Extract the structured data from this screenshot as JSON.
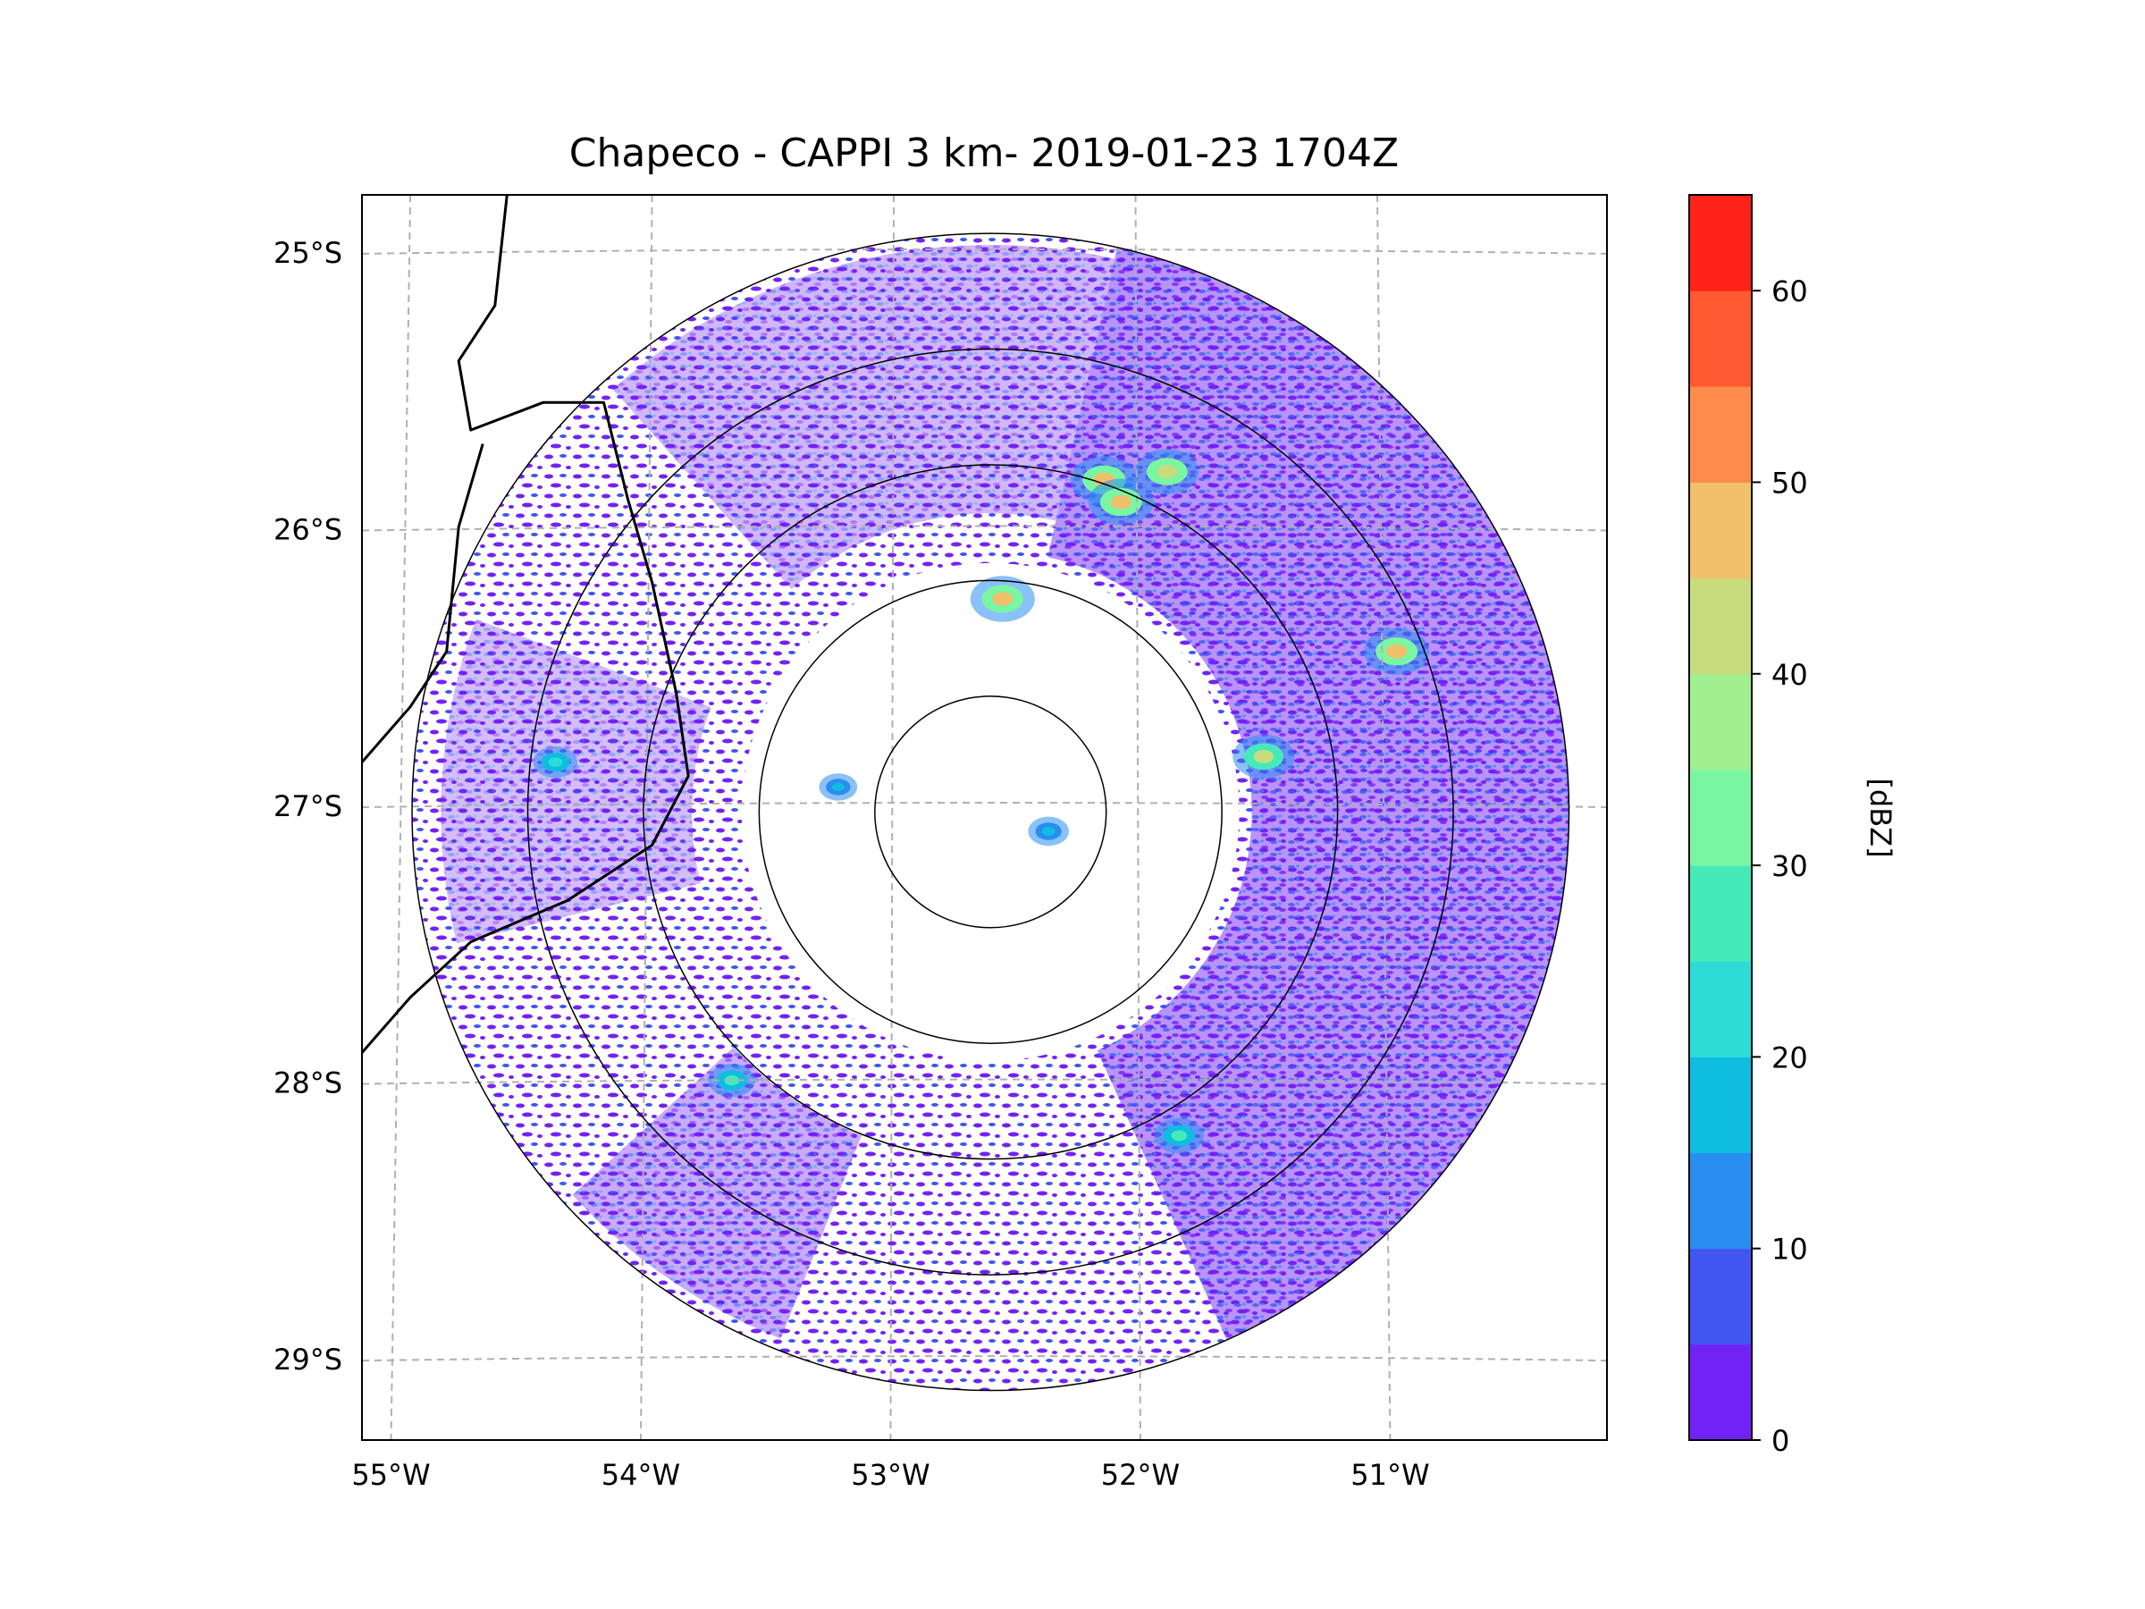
{
  "title": "Chapeco - CAPPI 3 km- 2019-01-23 1704Z",
  "map": {
    "lon_range": [
      -55.2,
      -50.05
    ],
    "lat_range": [
      -29.3,
      -24.8
    ],
    "radar_site": {
      "lon": -52.6,
      "lat": -27.03
    },
    "range_rings_km": [
      50,
      100,
      150,
      200,
      250
    ],
    "gridlines": "dashed",
    "lon_ticks": [
      {
        "value": -55,
        "label": "55°W"
      },
      {
        "value": -54,
        "label": "54°W"
      },
      {
        "value": -53,
        "label": "53°W"
      },
      {
        "value": -52,
        "label": "52°W"
      },
      {
        "value": -51,
        "label": "51°W"
      }
    ],
    "lat_ticks": [
      {
        "value": -25,
        "label": "25°S"
      },
      {
        "value": -26,
        "label": "26°S"
      },
      {
        "value": -27,
        "label": "27°S"
      },
      {
        "value": -28,
        "label": "28°S"
      },
      {
        "value": -29,
        "label": "29°S"
      }
    ],
    "borders": [
      [
        [
          -54.6,
          -24.8
        ],
        [
          -54.65,
          -25.2
        ],
        [
          -54.8,
          -25.4
        ],
        [
          -54.75,
          -25.65
        ],
        [
          -54.45,
          -25.55
        ],
        [
          -54.2,
          -25.55
        ],
        [
          -54.1,
          -25.9
        ],
        [
          -54.0,
          -26.2
        ],
        [
          -53.9,
          -26.6
        ],
        [
          -53.85,
          -26.9
        ],
        [
          -54.0,
          -27.15
        ],
        [
          -54.35,
          -27.35
        ],
        [
          -54.75,
          -27.5
        ],
        [
          -55.0,
          -27.7
        ],
        [
          -55.2,
          -27.9
        ]
      ],
      [
        [
          -55.2,
          -26.85
        ],
        [
          -55.0,
          -26.65
        ],
        [
          -54.85,
          -26.45
        ],
        [
          -54.8,
          -26.0
        ],
        [
          -54.7,
          -25.7
        ]
      ]
    ],
    "echo_cells": [
      {
        "lon": -52.13,
        "lat": -25.83,
        "dbz": 48
      },
      {
        "lon": -51.87,
        "lat": -25.8,
        "dbz": 44
      },
      {
        "lon": -52.06,
        "lat": -25.91,
        "dbz": 46
      },
      {
        "lon": -52.55,
        "lat": -26.26,
        "dbz": 45
      },
      {
        "lon": -51.47,
        "lat": -26.83,
        "dbz": 42
      },
      {
        "lon": -50.92,
        "lat": -26.45,
        "dbz": 46
      },
      {
        "lon": -51.82,
        "lat": -28.2,
        "dbz": 28
      },
      {
        "lon": -53.67,
        "lat": -28.0,
        "dbz": 25
      },
      {
        "lon": -54.4,
        "lat": -26.85,
        "dbz": 22
      },
      {
        "lon": -52.36,
        "lat": -27.1,
        "dbz": 18
      },
      {
        "lon": -53.23,
        "lat": -26.94,
        "dbz": 15
      }
    ]
  },
  "colorbar": {
    "label": "[dBZ]",
    "range": [
      0,
      65
    ],
    "ticks": [
      0,
      10,
      20,
      30,
      40,
      50,
      60
    ],
    "tick_labels": [
      "0",
      "10",
      "20",
      "30",
      "40",
      "50",
      "60"
    ],
    "levels": [
      {
        "from": 0,
        "to": 5,
        "color": "#7322f6"
      },
      {
        "from": 5,
        "to": 10,
        "color": "#4255f1"
      },
      {
        "from": 10,
        "to": 15,
        "color": "#2a8ef0"
      },
      {
        "from": 15,
        "to": 20,
        "color": "#0fbde0"
      },
      {
        "from": 20,
        "to": 25,
        "color": "#2ddcd6"
      },
      {
        "from": 25,
        "to": 30,
        "color": "#46eab9"
      },
      {
        "from": 30,
        "to": 35,
        "color": "#79f6a2"
      },
      {
        "from": 35,
        "to": 40,
        "color": "#a0f090"
      },
      {
        "from": 40,
        "to": 45,
        "color": "#c8dc7e"
      },
      {
        "from": 45,
        "to": 50,
        "color": "#f0c06a"
      },
      {
        "from": 50,
        "to": 55,
        "color": "#ff8c4c"
      },
      {
        "from": 55,
        "to": 60,
        "color": "#ff5a32"
      },
      {
        "from": 60,
        "to": 65,
        "color": "#ff2218"
      }
    ]
  }
}
